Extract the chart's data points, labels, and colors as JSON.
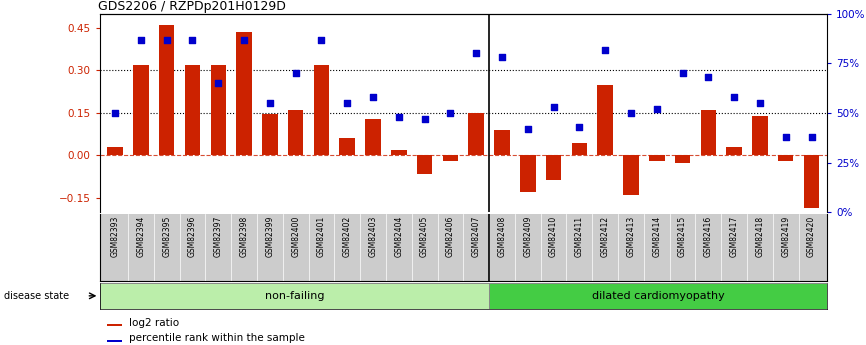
{
  "title": "GDS2206 / RZPDp201H0129D",
  "samples": [
    "GSM82393",
    "GSM82394",
    "GSM82395",
    "GSM82396",
    "GSM82397",
    "GSM82398",
    "GSM82399",
    "GSM82400",
    "GSM82401",
    "GSM82402",
    "GSM82403",
    "GSM82404",
    "GSM82405",
    "GSM82406",
    "GSM82407",
    "GSM82408",
    "GSM82409",
    "GSM82410",
    "GSM82411",
    "GSM82412",
    "GSM82413",
    "GSM82414",
    "GSM82415",
    "GSM82416",
    "GSM82417",
    "GSM82418",
    "GSM82419",
    "GSM82420"
  ],
  "log2_ratio": [
    0.03,
    0.32,
    0.46,
    0.32,
    0.32,
    0.435,
    0.145,
    0.16,
    0.32,
    0.06,
    0.13,
    0.02,
    -0.065,
    -0.02,
    0.15,
    0.09,
    -0.13,
    -0.085,
    0.045,
    0.25,
    -0.14,
    -0.02,
    -0.025,
    0.16,
    0.03,
    0.14,
    -0.02,
    -0.185
  ],
  "percentile": [
    50,
    87,
    87,
    87,
    65,
    87,
    55,
    70,
    87,
    55,
    58,
    48,
    47,
    50,
    80,
    78,
    42,
    53,
    43,
    82,
    50,
    52,
    70,
    68,
    58,
    55,
    38,
    38
  ],
  "non_failing_count": 15,
  "dilated_count": 13,
  "bar_color": "#cc2200",
  "dot_color": "#0000cc",
  "nonfailing_color": "#bbeeaa",
  "dilated_color": "#44cc44",
  "label_bg_color": "#cccccc",
  "ylim_left": [
    -0.2,
    0.5
  ],
  "ylim_right": [
    0,
    100
  ],
  "yticks_left": [
    -0.15,
    0.0,
    0.15,
    0.3,
    0.45
  ],
  "yticks_right": [
    0,
    25,
    50,
    75,
    100
  ],
  "hlines": [
    0.15,
    0.3
  ],
  "hline_zero": 0.0
}
